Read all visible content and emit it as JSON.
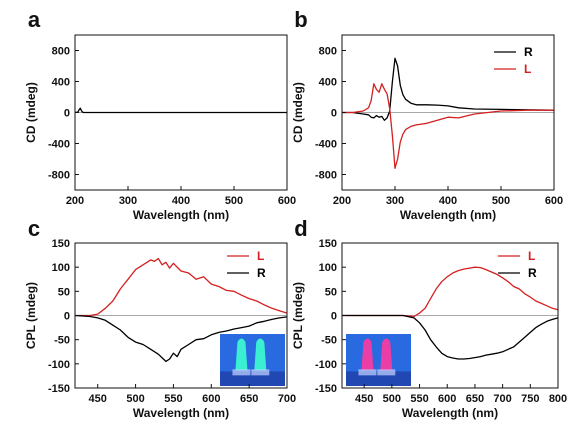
{
  "chart_data": [
    {
      "panel": "a",
      "type": "line",
      "xlabel": "Wavelength (nm)",
      "ylabel": "CD (mdeg)",
      "xlim": [
        200,
        600
      ],
      "ylim": [
        -1000,
        1000
      ],
      "xticks": [
        200,
        300,
        400,
        500,
        600
      ],
      "yticks": [
        800,
        400,
        0,
        -400,
        -800
      ],
      "legend": null,
      "inset": null,
      "series": [
        {
          "name": "",
          "color": "#000000",
          "x": [
            200,
            205,
            208,
            210,
            212,
            214,
            216,
            220,
            240,
            300,
            400,
            500,
            600
          ],
          "y": [
            0,
            5,
            35,
            55,
            25,
            6,
            0,
            0,
            0,
            0,
            0,
            0,
            0
          ]
        }
      ]
    },
    {
      "panel": "b",
      "type": "line",
      "xlabel": "Wavelength (nm)",
      "ylabel": "CD (mdeg)",
      "xlim": [
        200,
        600
      ],
      "ylim": [
        -1000,
        1000
      ],
      "xticks": [
        200,
        300,
        400,
        500,
        600
      ],
      "yticks": [
        800,
        400,
        0,
        -400,
        -800
      ],
      "legend": {
        "position": "top-right"
      },
      "inset": null,
      "series": [
        {
          "name": "R",
          "color": "#000000",
          "x": [
            200,
            220,
            240,
            250,
            255,
            260,
            265,
            270,
            275,
            280,
            285,
            290,
            295,
            300,
            305,
            310,
            315,
            320,
            330,
            340,
            350,
            360,
            380,
            400,
            420,
            450,
            500,
            550,
            600
          ],
          "y": [
            0,
            0,
            -20,
            -30,
            -60,
            -70,
            -40,
            -60,
            -50,
            -100,
            -70,
            20,
            400,
            700,
            600,
            350,
            230,
            170,
            120,
            100,
            100,
            100,
            95,
            85,
            60,
            45,
            40,
            35,
            30
          ]
        },
        {
          "name": "L",
          "color": "#d42020",
          "x": [
            200,
            220,
            240,
            250,
            255,
            260,
            265,
            270,
            275,
            280,
            285,
            290,
            295,
            300,
            305,
            310,
            315,
            320,
            330,
            340,
            350,
            360,
            380,
            400,
            420,
            450,
            500,
            550,
            600
          ],
          "y": [
            0,
            0,
            20,
            60,
            150,
            370,
            300,
            260,
            370,
            300,
            240,
            50,
            -300,
            -720,
            -600,
            -380,
            -280,
            -220,
            -180,
            -160,
            -150,
            -140,
            -100,
            -60,
            -70,
            -20,
            20,
            30,
            30
          ]
        }
      ]
    },
    {
      "panel": "c",
      "type": "line",
      "xlabel": "Wavelength (nm)",
      "ylabel": "CPL (mdeg)",
      "xlim": [
        420,
        700
      ],
      "ylim": [
        -150,
        150
      ],
      "xticks": [
        450,
        500,
        550,
        600,
        650,
        700
      ],
      "yticks": [
        150,
        100,
        50,
        0,
        -50,
        -100,
        -150
      ],
      "legend": {
        "position": "top-right"
      },
      "inset": {
        "tint": "#2a6ae0",
        "glow": "#3dffd0",
        "position": "bottom-right"
      },
      "series": [
        {
          "name": "L",
          "color": "#d42020",
          "x": [
            420,
            440,
            450,
            460,
            470,
            480,
            490,
            500,
            510,
            520,
            525,
            530,
            535,
            540,
            545,
            550,
            560,
            570,
            580,
            590,
            600,
            610,
            620,
            630,
            640,
            650,
            660,
            670,
            680,
            690,
            700
          ],
          "y": [
            0,
            0,
            3,
            15,
            30,
            55,
            75,
            95,
            105,
            115,
            112,
            118,
            105,
            110,
            98,
            108,
            92,
            88,
            75,
            80,
            65,
            60,
            52,
            50,
            42,
            35,
            30,
            22,
            15,
            10,
            5
          ]
        },
        {
          "name": "R",
          "color": "#000000",
          "x": [
            420,
            440,
            450,
            460,
            470,
            480,
            490,
            500,
            510,
            520,
            530,
            540,
            545,
            550,
            555,
            560,
            570,
            580,
            590,
            600,
            610,
            620,
            630,
            640,
            650,
            660,
            670,
            680,
            690,
            700
          ],
          "y": [
            0,
            -2,
            -5,
            -10,
            -20,
            -30,
            -45,
            -55,
            -60,
            -70,
            -80,
            -95,
            -90,
            -78,
            -85,
            -70,
            -60,
            -50,
            -48,
            -40,
            -35,
            -32,
            -28,
            -25,
            -22,
            -15,
            -12,
            -8,
            -5,
            -3
          ]
        }
      ]
    },
    {
      "panel": "d",
      "type": "line",
      "xlabel": "Wavelength (nm)",
      "ylabel": "CPL (mdeg)",
      "xlim": [
        410,
        800
      ],
      "ylim": [
        -150,
        150
      ],
      "xticks": [
        450,
        500,
        550,
        600,
        650,
        700,
        750,
        800
      ],
      "yticks": [
        150,
        100,
        50,
        0,
        -50,
        -100,
        -150
      ],
      "legend": {
        "position": "top-right"
      },
      "inset": {
        "tint": "#2a6ae0",
        "glow": "#ff3aa0",
        "position": "bottom-left"
      },
      "series": [
        {
          "name": "L",
          "color": "#d42020",
          "x": [
            410,
            450,
            500,
            520,
            540,
            550,
            560,
            570,
            580,
            590,
            600,
            610,
            620,
            630,
            640,
            650,
            660,
            670,
            680,
            690,
            700,
            710,
            720,
            730,
            740,
            750,
            760,
            770,
            780,
            790,
            800
          ],
          "y": [
            0,
            0,
            0,
            0,
            -2,
            5,
            15,
            35,
            55,
            70,
            80,
            88,
            93,
            96,
            98,
            100,
            99,
            95,
            90,
            85,
            78,
            70,
            60,
            55,
            45,
            38,
            30,
            25,
            20,
            15,
            12
          ]
        },
        {
          "name": "R",
          "color": "#000000",
          "x": [
            410,
            450,
            500,
            520,
            540,
            550,
            560,
            570,
            580,
            590,
            600,
            610,
            620,
            630,
            640,
            650,
            660,
            670,
            680,
            690,
            700,
            710,
            720,
            730,
            740,
            750,
            760,
            770,
            780,
            790,
            800
          ],
          "y": [
            0,
            0,
            0,
            0,
            -5,
            -15,
            -30,
            -50,
            -65,
            -78,
            -85,
            -88,
            -90,
            -90,
            -89,
            -87,
            -85,
            -82,
            -80,
            -78,
            -75,
            -70,
            -65,
            -55,
            -45,
            -35,
            -25,
            -18,
            -12,
            -8,
            -5
          ]
        }
      ]
    }
  ]
}
